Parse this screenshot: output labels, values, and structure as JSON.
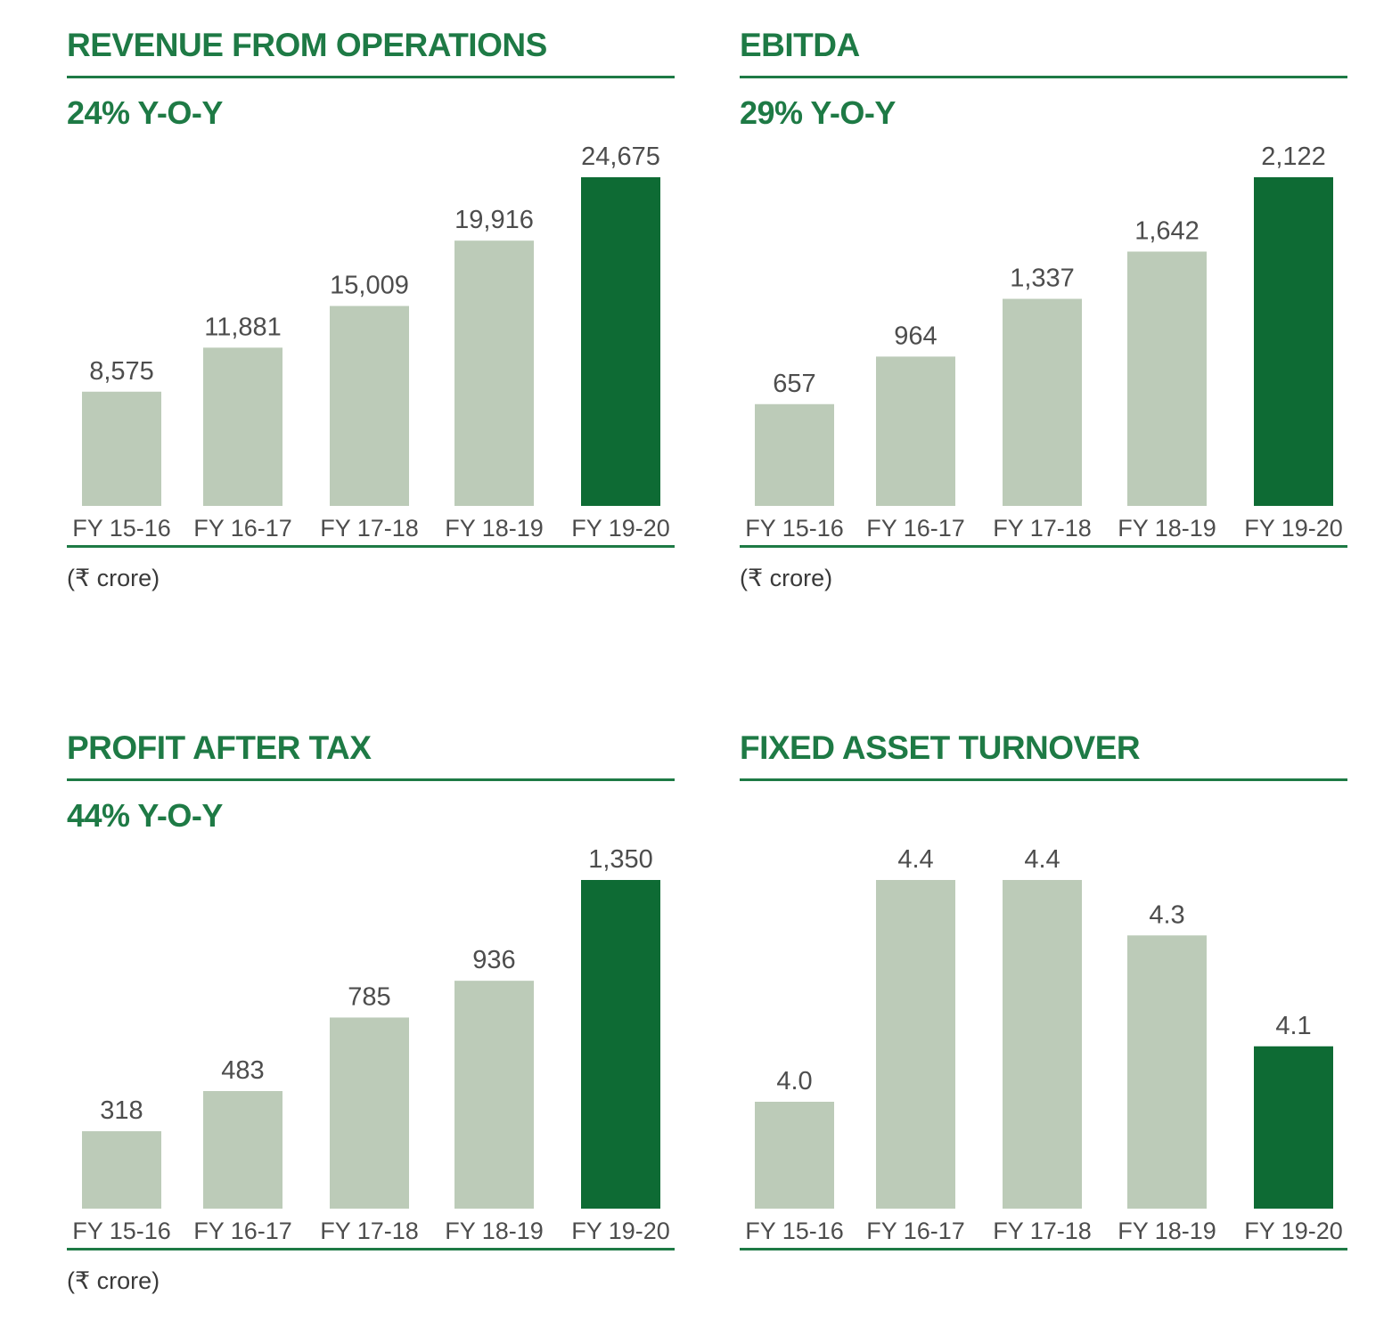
{
  "colors": {
    "accent": "#1e7a45",
    "bar": "#bccbb8",
    "highlight": "#0e6b34",
    "text": "#4d4d4d"
  },
  "chart_data": [
    {
      "type": "bar",
      "title": "REVENUE FROM OPERATIONS",
      "subtitle": "24% Y-O-Y",
      "unit": "(₹ crore)",
      "categories": [
        "FY 15-16",
        "FY 16-17",
        "FY 17-18",
        "FY 18-19",
        "FY 19-20"
      ],
      "values": [
        8575,
        11881,
        15009,
        19916,
        24675
      ],
      "value_labels": [
        "8,575",
        "11,881",
        "15,009",
        "19,916",
        "24,675"
      ],
      "highlight_index": 4,
      "ylim": [
        0,
        24675
      ]
    },
    {
      "type": "bar",
      "title": "EBITDA",
      "subtitle": "29% Y-O-Y",
      "unit": "(₹ crore)",
      "categories": [
        "FY 15-16",
        "FY 16-17",
        "FY 17-18",
        "FY 18-19",
        "FY 19-20"
      ],
      "values": [
        657,
        964,
        1337,
        1642,
        2122
      ],
      "value_labels": [
        "657",
        "964",
        "1,337",
        "1,642",
        "2,122"
      ],
      "highlight_index": 4,
      "ylim": [
        0,
        2122
      ]
    },
    {
      "type": "bar",
      "title": "PROFIT AFTER TAX",
      "subtitle": "44% Y-O-Y",
      "unit": "(₹ crore)",
      "categories": [
        "FY 15-16",
        "FY 16-17",
        "FY 17-18",
        "FY 18-19",
        "FY 19-20"
      ],
      "values": [
        318,
        483,
        785,
        936,
        1350
      ],
      "value_labels": [
        "318",
        "483",
        "785",
        "936",
        "1,350"
      ],
      "highlight_index": 4,
      "ylim": [
        0,
        1350
      ]
    },
    {
      "type": "bar",
      "title": "FIXED ASSET TURNOVER",
      "subtitle": "",
      "unit": "",
      "categories": [
        "FY 15-16",
        "FY 16-17",
        "FY 17-18",
        "FY 18-19",
        "FY 19-20"
      ],
      "values": [
        4.0,
        4.4,
        4.4,
        4.3,
        4.1
      ],
      "value_labels": [
        "4.0",
        "4.4",
        "4.4",
        "4.3",
        "4.1"
      ],
      "highlight_index": 4,
      "ylim": [
        3.5,
        4.4
      ]
    }
  ]
}
